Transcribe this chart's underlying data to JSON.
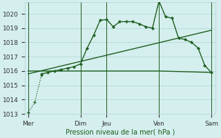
{
  "bg_color": "#d5eeee",
  "grid_color": "#b0d4d4",
  "line_color": "#1a5c1a",
  "title": "Pression niveau de la mer( hPa )",
  "ylim": [
    1013.0,
    1020.8
  ],
  "yticks": [
    1013,
    1014,
    1015,
    1016,
    1017,
    1018,
    1019,
    1020
  ],
  "xtick_labels": [
    "Mer",
    "Dim",
    "Jeu",
    "Ven",
    "Sam"
  ],
  "xtick_positions": [
    0,
    48,
    72,
    120,
    168
  ],
  "vline_positions": [
    0,
    48,
    72,
    120,
    168
  ],
  "series_dotted": {
    "x": [
      0,
      6,
      12,
      18,
      24,
      30,
      36,
      42,
      48,
      54,
      60,
      66,
      72,
      78,
      84,
      90,
      96,
      102,
      108,
      114,
      120,
      126,
      132,
      138,
      144,
      150,
      156,
      162,
      168
    ],
    "y": [
      1013.1,
      1013.8,
      1015.7,
      1015.9,
      1016.0,
      1016.1,
      1016.2,
      1016.3,
      1016.5,
      1017.6,
      1018.5,
      1019.55,
      1019.6,
      1019.1,
      1019.45,
      1019.45,
      1019.45,
      1019.3,
      1019.1,
      1019.0,
      1020.9,
      1019.8,
      1019.7,
      1018.3,
      1018.2,
      1018.0,
      1017.6,
      1016.4,
      1015.9
    ]
  },
  "series_solid": {
    "x": [
      12,
      18,
      24,
      30,
      36,
      42,
      48,
      54,
      60,
      66,
      72,
      78,
      84,
      90,
      96,
      102,
      108,
      114,
      120,
      126,
      132,
      138,
      144,
      150,
      156,
      162,
      168
    ],
    "y": [
      1015.8,
      1015.9,
      1016.0,
      1016.1,
      1016.2,
      1016.3,
      1016.5,
      1017.6,
      1018.5,
      1019.55,
      1019.6,
      1019.1,
      1019.45,
      1019.45,
      1019.45,
      1019.3,
      1019.1,
      1019.0,
      1020.9,
      1019.8,
      1019.7,
      1018.3,
      1018.2,
      1018.0,
      1017.6,
      1016.4,
      1015.9
    ]
  },
  "series_trend": {
    "x": [
      0,
      168
    ],
    "y": [
      1015.8,
      1018.85
    ]
  },
  "series_flat_then_down": {
    "x": [
      0,
      120,
      168
    ],
    "y": [
      1016.0,
      1016.0,
      1015.9
    ]
  }
}
